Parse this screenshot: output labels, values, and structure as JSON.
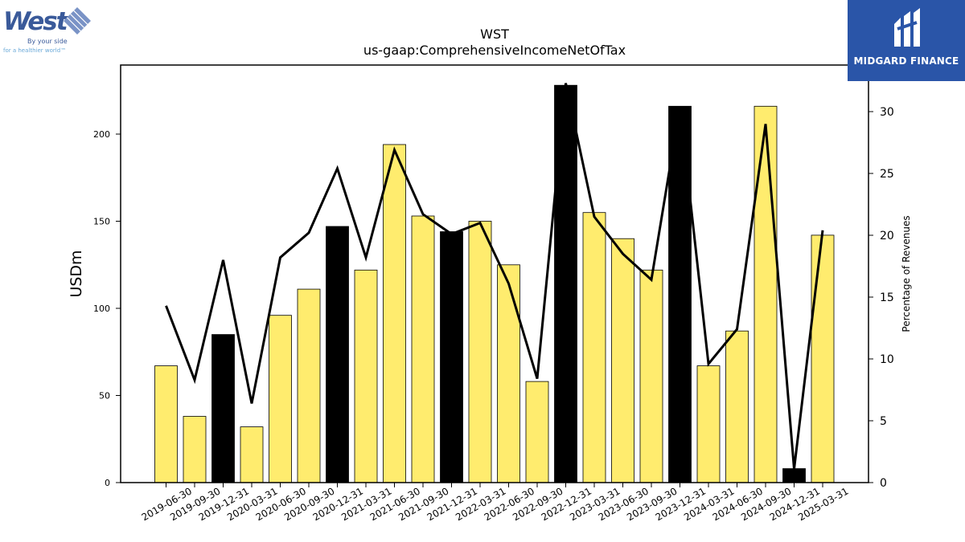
{
  "header": {
    "ticker": "WST",
    "concept": "us-gaap:ComprehensiveIncomeNetOfTax"
  },
  "logos": {
    "west": {
      "wordmark": "West",
      "tagline1": "By your side",
      "tagline2": "for a healthier world™"
    },
    "midgard": {
      "name": "MIDGARD FINANCE"
    }
  },
  "colors": {
    "bar_fill": "#ffec6e",
    "bar_highlight": "#000000",
    "line": "#000000",
    "west_blue": "#3a5a9a",
    "midgard_bg": "#2a55a8"
  },
  "chart_data": {
    "type": "bar",
    "title": "WST",
    "subtitle": "us-gaap:ComprehensiveIncomeNetOfTax",
    "ylabel": "USDm",
    "y2label": "Percentage of Revenues",
    "ylim": [
      0,
      240
    ],
    "y2lim": [
      0,
      34
    ],
    "yticks": [
      0,
      50,
      100,
      150,
      200
    ],
    "y2ticks": [
      0,
      5,
      10,
      15,
      20,
      25,
      30
    ],
    "categories": [
      "2019-06-30",
      "2019-09-30",
      "2019-12-31",
      "2020-03-31",
      "2020-06-30",
      "2020-09-30",
      "2020-12-31",
      "2021-03-31",
      "2021-06-30",
      "2021-09-30",
      "2021-12-31",
      "2022-03-31",
      "2022-06-30",
      "2022-09-30",
      "2022-12-31",
      "2023-03-31",
      "2023-06-30",
      "2023-09-30",
      "2023-12-31",
      "2024-03-31",
      "2024-06-30",
      "2024-09-30",
      "2024-12-31",
      "2025-03-31"
    ],
    "series": [
      {
        "type": "bar",
        "axis": "left",
        "values": [
          67,
          38,
          85,
          32,
          96,
          111,
          147,
          122,
          194,
          153,
          144,
          150,
          125,
          58,
          228,
          155,
          140,
          122,
          216,
          67,
          87,
          216,
          8,
          142
        ],
        "highlight": [
          false,
          false,
          true,
          false,
          false,
          false,
          true,
          false,
          false,
          false,
          true,
          false,
          false,
          false,
          true,
          false,
          false,
          false,
          true,
          false,
          false,
          false,
          true,
          false
        ]
      },
      {
        "type": "line",
        "axis": "right",
        "values": [
          14.3,
          8.3,
          18.0,
          6.4,
          18.2,
          20.2,
          25.4,
          18.2,
          26.9,
          21.7,
          20.1,
          21.0,
          16.1,
          8.4,
          32.3,
          21.5,
          18.5,
          16.4,
          30.4,
          9.6,
          12.4,
          29.0,
          1.1,
          20.4
        ]
      }
    ],
    "legend": "none",
    "grid": false
  }
}
